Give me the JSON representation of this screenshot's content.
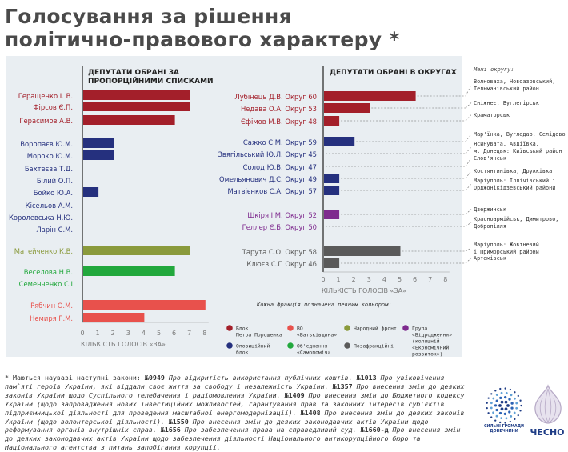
{
  "title": [
    "Голосування за рішення",
    "політично-правового характеру *"
  ],
  "chart_data": [
    {
      "type": "bar",
      "title": "ДЕПУТАТИ ОБРАНІ ЗА ПРОПОРЦІЙНИМИ СПИСКАМИ",
      "xlabel": "КІЛЬКІСТЬ ГОЛОСІВ «ЗА»",
      "xlim": [
        0,
        8
      ],
      "xticks": [
        "0",
        "1",
        "2",
        "3",
        "4",
        "5",
        "6",
        "7",
        "8"
      ],
      "categories": [
        "Геращенко І. В.",
        "Фірсов Є.П.",
        "Герасимов А.В.",
        "Воропаєв Ю.М.",
        "Мороко Ю.М.",
        "Бахтеєва Т.Д.",
        "Білий О.П.",
        "Бойко Ю.А.",
        "Кісельов А.М.",
        "Королевська Н.Ю.",
        "Ларін С.М.",
        "Матейченко К.В.",
        "Веселова Н.В.",
        "Семенченко С.І",
        "Рябчин О.М.",
        "Немиря Г.М."
      ],
      "values": [
        7,
        7,
        6,
        2,
        2,
        0,
        0,
        1,
        0,
        0,
        0,
        7,
        6,
        0,
        8,
        4
      ],
      "factions": [
        "bpp",
        "bpp",
        "bpp",
        "opz",
        "opz",
        "opz",
        "opz",
        "opz",
        "opz",
        "opz",
        "opz",
        "nf",
        "samopomich",
        "samopomich",
        "batkivshchyna",
        "batkivshchyna"
      ]
    },
    {
      "type": "bar",
      "title": "ДЕПУТАТИ ОБРАНІ В ОКРУГАХ",
      "xlabel": "КІЛЬКІСТЬ ГОЛОСІВ «ЗА»",
      "xlim": [
        0,
        8
      ],
      "xticks": [
        "0",
        "1",
        "2",
        "3",
        "4",
        "5",
        "6",
        "7",
        "8"
      ],
      "categories": [
        "Лубінець Д.В. Округ 60",
        "Недава О.А. Округ 53",
        "Єфімов М.В. Округ 48",
        "Сажко С.М. Округ 59",
        "Звягільський Ю.Л. Округ 45",
        "Солод Ю.В. Округ 47",
        "Омельянович Д.С. Округ 49",
        "Матвієнков С.А. Округ 57",
        "Шкіря І.М. Округ 52",
        "Геллер Є.Б. Округ 50",
        "Тарута С.О. Округ 58",
        "Клюєв С.П Округ 46"
      ],
      "values": [
        6,
        3,
        1,
        2,
        0,
        0,
        1,
        1,
        1,
        0,
        5,
        1
      ],
      "factions": [
        "bpp",
        "bpp",
        "bpp",
        "opz",
        "opz",
        "opz",
        "opz",
        "opz",
        "vidrodzhennia",
        "vidrodzhennia",
        "none",
        "none"
      ]
    }
  ],
  "districts_header": "Межі округу:",
  "districts": [
    [
      "Волноваха, Новоазовський,",
      "Тельманівський район"
    ],
    [
      "Сніжнеє, Вуглегірськ"
    ],
    [
      "Краматорськ"
    ],
    [
      "Мар'їнка, Вугледар, Селідово"
    ],
    [
      "Ясинувата, Авдіївка,",
      "м. Донецьк: Київський район"
    ],
    [
      "Слов'янськ"
    ],
    [
      "Костянтинівка, Дружківка"
    ],
    [
      "Маріуполь: Іллічівський і",
      "Орджонікідзевський райони"
    ],
    [
      "Дзержинськ"
    ],
    [
      "Красноармійськ, Димитрово,",
      "Добропілля"
    ],
    [
      "Маріуполь: Жовтневий",
      "і Приморський райони"
    ],
    [
      "Артемівськ"
    ]
  ],
  "legend_title": "Кожна фракція позначена певним кольором:",
  "legend": [
    {
      "key": "bpp",
      "label": [
        "Блок",
        "Петра Порошенка"
      ]
    },
    {
      "key": "batkivshchyna",
      "label": [
        "ВО",
        "«Батьківщина»"
      ]
    },
    {
      "key": "nf",
      "label": [
        "Народний фронт"
      ]
    },
    {
      "key": "vidrodzhennia",
      "label": [
        "Група",
        "«Відродження»",
        "(колишній",
        "«Економічний",
        "розвиток»)"
      ]
    },
    {
      "key": "opz",
      "label": [
        "Опозиційний",
        "блок"
      ]
    },
    {
      "key": "samopomich",
      "label": [
        "Об'єднання",
        "«Самопоміч»"
      ]
    },
    {
      "key": "none",
      "label": [
        "Позафракційні"
      ]
    }
  ],
  "colors": {
    "bpp": "#a31f2a",
    "opz": "#25307e",
    "nf": "#8a9a3c",
    "samopomich": "#22a83d",
    "batkivshchyna": "#e8514c",
    "vidrodzhennia": "#7e2a8e",
    "none": "#5a5a5a"
  },
  "logos": {
    "civic": [
      "СИЛЬНІ ГРОМАДИ",
      "ДОНЕЧЧИНИ"
    ],
    "chesno": "ЧЕСНО"
  },
  "footnote": [
    {
      "t": "* Маються наувазі наступні закони: ",
      "s": "n"
    },
    {
      "t": "№0949",
      "s": "b"
    },
    {
      "t": " Про відкритість використання публічних коштів. ",
      "s": "i"
    },
    {
      "t": "№1013",
      "s": "b"
    },
    {
      "t": " Про увіковічення пам`яті героїв України, які віддали своє життя за свободу і незалежність України. ",
      "s": "i"
    },
    {
      "t": "№1357",
      "s": "b"
    },
    {
      "t": " Про внесення змін до деяких законів України щодо Суспільного телебачення і радіомовлення України. ",
      "s": "i"
    },
    {
      "t": "№1409",
      "s": "b"
    },
    {
      "t": " Про внесення змін до Бюджетного кодексу України (щодо запровадження нових інвестиційних можливостей, гарантування прав та законних інтересів суб'єктів підприємницької діяльності для проведення масштабної енергомодернізації). ",
      "s": "i"
    },
    {
      "t": "№1408",
      "s": "b"
    },
    {
      "t": " Про внесення змін до деяких законів України (щодо волонтерської діяльності). ",
      "s": "i"
    },
    {
      "t": "№1550",
      "s": "b"
    },
    {
      "t": " Про внесення змін до деяких законодавчих актів України щодо реформування органів внутрішніх справ. ",
      "s": "i"
    },
    {
      "t": "№1656",
      "s": "b"
    },
    {
      "t": " Про забезпечення права на справедливий суд. ",
      "s": "i"
    },
    {
      "t": "№1660-д",
      "s": "b"
    },
    {
      "t": " Про внесення змін до деяких законодавчих актів України щодо забезпечення діяльності Національного антикорупційного бюро та Національного агентства з питань запобігання корупції.",
      "s": "i"
    }
  ]
}
